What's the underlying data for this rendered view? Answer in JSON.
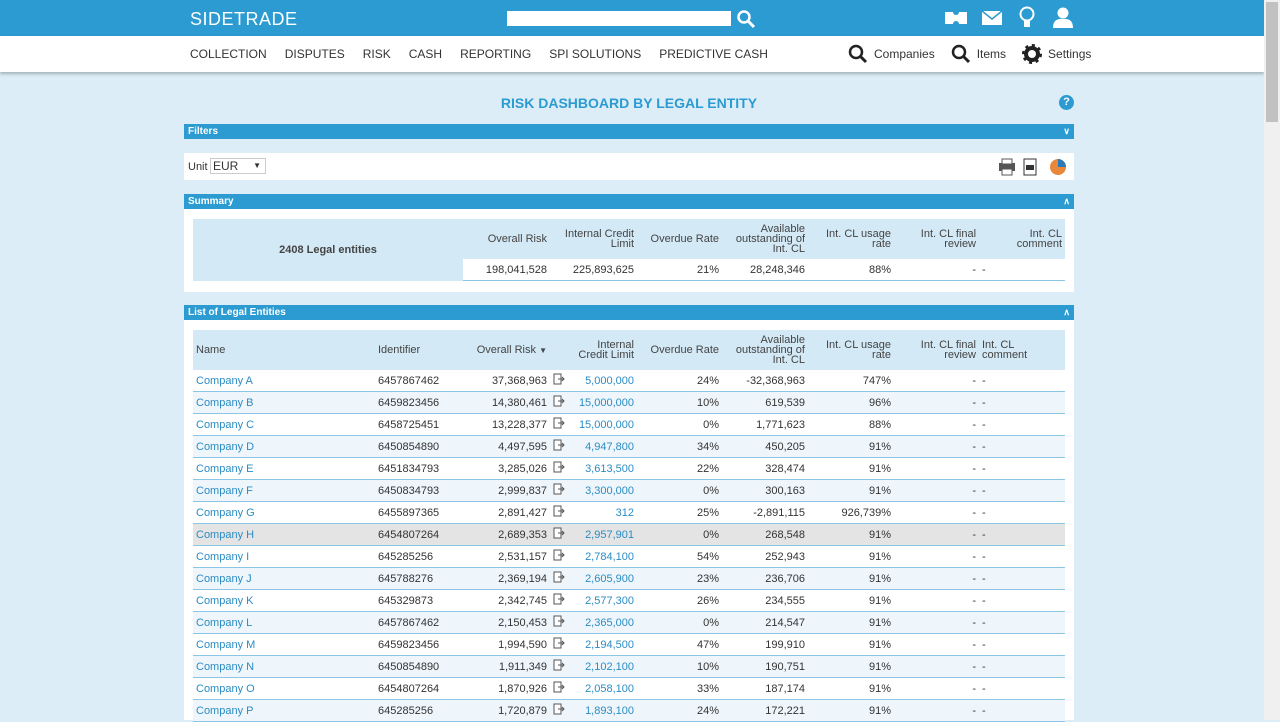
{
  "header": {
    "logo": "SIDETRADE"
  },
  "nav": {
    "items": [
      "COLLECTION",
      "DISPUTES",
      "RISK",
      "CASH",
      "REPORTING",
      "SPI SOLUTIONS",
      "PREDICTIVE CASH"
    ],
    "right": [
      "Companies",
      "Items",
      "Settings"
    ]
  },
  "title": "RISK DASHBOARD BY LEGAL ENTITY",
  "filters": {
    "title": "Filters",
    "unit_label": "Unit",
    "unit_value": "EUR"
  },
  "summary": {
    "title": "Summary",
    "entities": "2408 Legal entities",
    "values": [
      "198,041,528",
      "225,893,625",
      "21%",
      "28,248,346",
      "88%",
      "-",
      "-"
    ]
  },
  "list": {
    "title": "List of Legal Entities",
    "columns": [
      "Name",
      "Identifier",
      "Overall Risk",
      "Internal Credit Limit",
      "Overdue Rate",
      "Available outstanding of Int. CL",
      "Int. CL usage rate",
      "Int. CL final review",
      "Int. CL comment"
    ],
    "rows": [
      [
        "Company A",
        "6457867462",
        "37,368,963",
        "5,000,000",
        "24%",
        "-32,368,963",
        "747%",
        "-",
        "-"
      ],
      [
        "Company B",
        "6459823456",
        "14,380,461",
        "15,000,000",
        "10%",
        "619,539",
        "96%",
        "-",
        "-"
      ],
      [
        "Company C",
        "6458725451",
        "13,228,377",
        "15,000,000",
        "0%",
        "1,771,623",
        "88%",
        "-",
        "-"
      ],
      [
        "Company D",
        "6450854890",
        "4,497,595",
        "4,947,800",
        "34%",
        "450,205",
        "91%",
        "-",
        "-"
      ],
      [
        "Company E",
        "6451834793",
        "3,285,026",
        "3,613,500",
        "22%",
        "328,474",
        "91%",
        "-",
        "-"
      ],
      [
        "Company F",
        "6450834793",
        "2,999,837",
        "3,300,000",
        "0%",
        "300,163",
        "91%",
        "-",
        "-"
      ],
      [
        "Company G",
        "6455897365",
        "2,891,427",
        "312",
        "25%",
        "-2,891,115",
        "926,739%",
        "-",
        "-"
      ],
      [
        "Company H",
        "6454807264",
        "2,689,353",
        "2,957,901",
        "0%",
        "268,548",
        "91%",
        "-",
        "-"
      ],
      [
        "Company I",
        "645285256",
        "2,531,157",
        "2,784,100",
        "54%",
        "252,943",
        "91%",
        "-",
        "-"
      ],
      [
        "Company J",
        "645788276",
        "2,369,194",
        "2,605,900",
        "23%",
        "236,706",
        "91%",
        "-",
        "-"
      ],
      [
        "Company K",
        "645329873",
        "2,342,745",
        "2,577,300",
        "26%",
        "234,555",
        "91%",
        "-",
        "-"
      ],
      [
        "Company L",
        "6457867462",
        "2,150,453",
        "2,365,000",
        "0%",
        "214,547",
        "91%",
        "-",
        "-"
      ],
      [
        "Company M",
        "6459823456",
        "1,994,590",
        "2,194,500",
        "47%",
        "199,910",
        "91%",
        "-",
        "-"
      ],
      [
        "Company N",
        "6450854890",
        "1,911,349",
        "2,102,100",
        "10%",
        "190,751",
        "91%",
        "-",
        "-"
      ],
      [
        "Company O",
        "6454807264",
        "1,870,926",
        "2,058,100",
        "33%",
        "187,174",
        "91%",
        "-",
        "-"
      ],
      [
        "Company P",
        "645285256",
        "1,720,879",
        "1,893,100",
        "24%",
        "172,221",
        "91%",
        "-",
        "-"
      ]
    ]
  }
}
